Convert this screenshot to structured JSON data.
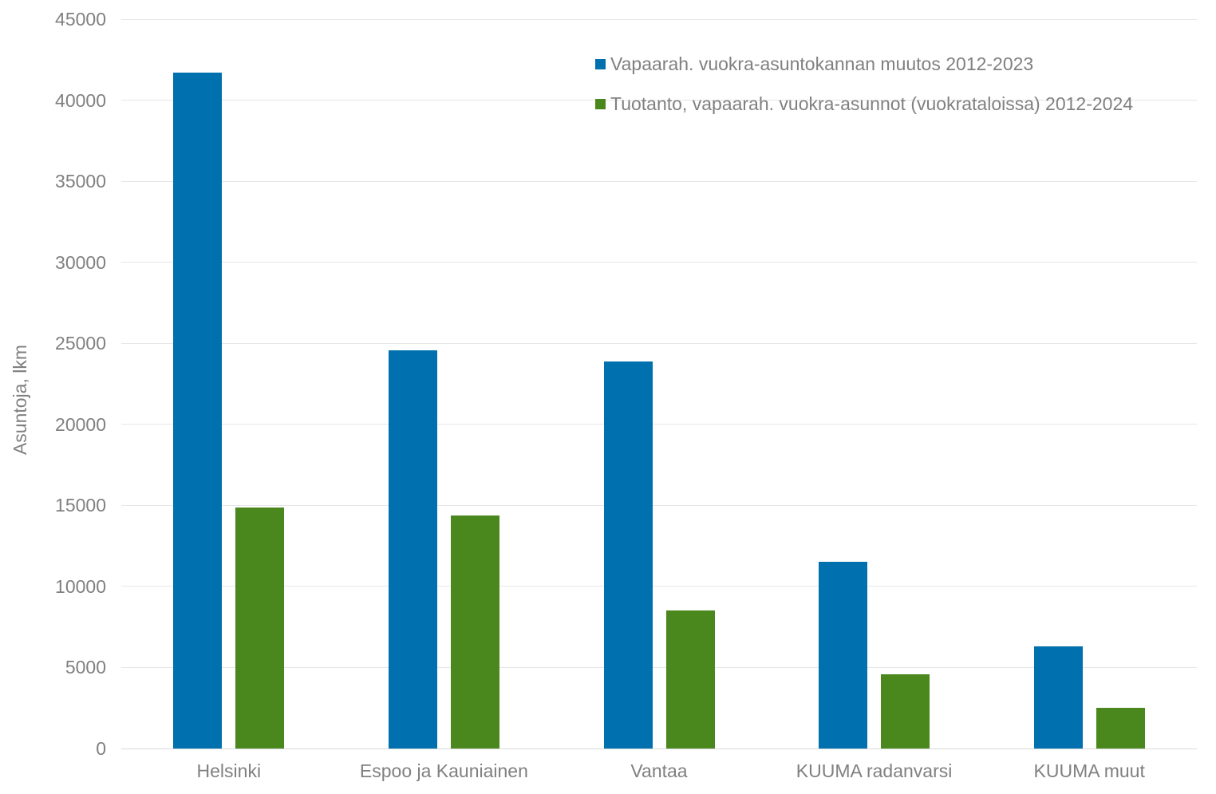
{
  "chart_data": {
    "type": "bar",
    "title": "",
    "categories": [
      "Helsinki",
      "Espoo ja Kauniainen",
      "Vantaa",
      "KUUMA radanvarsi",
      "KUUMA muut"
    ],
    "series": [
      {
        "name": "Vapaarah. vuokra-asuntokannan muutos 2012-2023",
        "color": "#0070ae",
        "values": [
          41700,
          24550,
          23900,
          11500,
          6300
        ]
      },
      {
        "name": "Tuotanto, vapaarah. vuokra-asunnot (vuokrataloissa) 2012-2024",
        "color": "#4a871d",
        "values": [
          14850,
          14400,
          8500,
          4600,
          2500
        ]
      }
    ],
    "xlabel": "",
    "ylabel": "Asuntoja, lkm",
    "ylim": [
      0,
      45000
    ],
    "yticks": [
      0,
      5000,
      10000,
      15000,
      20000,
      25000,
      30000,
      35000,
      40000,
      45000
    ],
    "grid": true,
    "legend_position": "top-right",
    "colors": {
      "gridline": "#e6e6e6",
      "zero_line": "#d9d9d9",
      "axis_text": "#808080",
      "background": "#ffffff"
    }
  }
}
